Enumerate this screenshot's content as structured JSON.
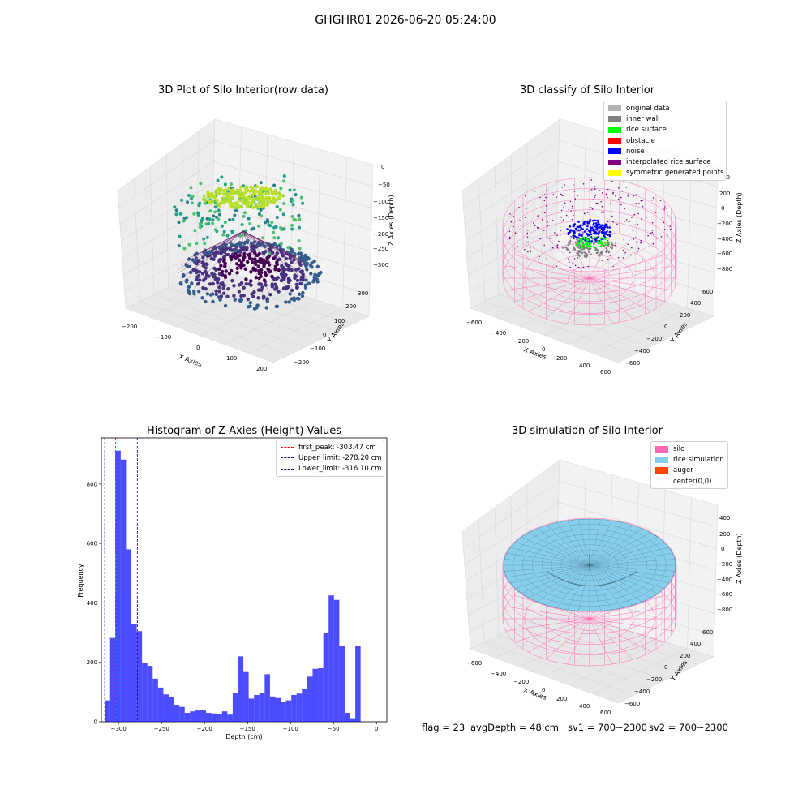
{
  "suptitle": "GHGHR01 2026-06-20 05:24:00",
  "panels": {
    "raw": {
      "title": "3D Plot of Silo Interior(row data)",
      "xlabel": "X Axies",
      "ylabel": "Y Axies",
      "zlabel": "Z Axies (Depth)",
      "xticks": [
        "−200",
        "−100",
        "0",
        "100",
        "200"
      ],
      "yticks": [
        "−200",
        "−100",
        "0",
        "100",
        "200",
        "300"
      ],
      "zticks": [
        "0",
        "−50",
        "−100",
        "−150",
        "−200",
        "−250",
        "−300"
      ]
    },
    "classify": {
      "title": "3D classify of Silo Interior",
      "xlabel": "X Axies",
      "ylabel": "Y Axies",
      "zlabel": "Z Axies (Depth)",
      "xticks": [
        "−600",
        "−400",
        "−200",
        "0",
        "200",
        "400",
        "600"
      ],
      "yticks": [
        "−600",
        "−400",
        "−200",
        "0",
        "200",
        "400",
        "600"
      ],
      "zticks": [
        "200",
        "0",
        "−200",
        "−400",
        "−600",
        "−800"
      ],
      "legend": [
        {
          "label": "original data",
          "color": "#b4b4b4"
        },
        {
          "label": "inner wall",
          "color": "#808080"
        },
        {
          "label": "rice surface",
          "color": "#00ff00"
        },
        {
          "label": "obstacle",
          "color": "#ff0000"
        },
        {
          "label": "noise",
          "color": "#0000ff"
        },
        {
          "label": "interpolated rice surface",
          "color": "#800080"
        },
        {
          "label": "symmetric generated points",
          "color": "#ffff00"
        }
      ],
      "partial_ztick": "00"
    },
    "simulation": {
      "title": "3D simulation of Silo Interior",
      "xlabel": "X Axies",
      "ylabel": "Y Axies",
      "zlabel": "Z Axies (Depth)",
      "xticks": [
        "−600",
        "−400",
        "−200",
        "0",
        "200",
        "400",
        "600"
      ],
      "yticks": [
        "−600",
        "−400",
        "−200",
        "0",
        "200",
        "400",
        "600"
      ],
      "zticks": [
        "400",
        "200",
        "0",
        "−200",
        "−400",
        "−600",
        "−800"
      ],
      "legend": [
        {
          "label": "silo",
          "color": "#ff69b4"
        },
        {
          "label": "rice simulation",
          "color": "#87ceeb"
        },
        {
          "label": "auger",
          "color": "#ff4500"
        },
        {
          "label": "center(0,0)",
          "color": ""
        }
      ]
    }
  },
  "chart_data": {
    "type": "bar",
    "title": "Histogram of Z-Axies (Height) Values",
    "xlabel": "Depth (cm)",
    "ylabel": "Frequency",
    "xlim": [
      -320,
      12
    ],
    "ylim": [
      0,
      955
    ],
    "bin_width": 6.2,
    "bin_start": -316.1,
    "xticks": [
      -300,
      -250,
      -200,
      -150,
      -100,
      -50,
      0
    ],
    "xtick_labels": [
      "−300",
      "−250",
      "−200",
      "−150",
      "−100",
      "−50",
      "0"
    ],
    "yticks": [
      0,
      200,
      400,
      600,
      800
    ],
    "values": [
      72,
      282,
      912,
      882,
      580,
      330,
      305,
      198,
      188,
      145,
      115,
      92,
      83,
      57,
      50,
      30,
      35,
      38,
      38,
      30,
      28,
      25,
      35,
      24,
      98,
      220,
      170,
      78,
      90,
      98,
      160,
      85,
      80,
      68,
      72,
      90,
      95,
      112,
      152,
      178,
      180,
      300,
      425,
      410,
      255,
      30,
      12,
      256
    ],
    "bar_color": "#0000ff",
    "vlines": [
      {
        "label": "first_peak: -303.47 cm",
        "x": -303.47,
        "color": "#ff0000"
      },
      {
        "label": "Upper_limit: -278.20 cm",
        "x": -278.2,
        "color": "#00008b"
      },
      {
        "label": "Lower_limit: -316.10 cm",
        "x": -316.1,
        "color": "#00008b"
      }
    ],
    "legend_position": "top-right"
  },
  "footer": {
    "flag": "flag = 23",
    "avg": "avgDepth = 48 cm",
    "sv1": "sv1 = 700~2300",
    "sv2": "sv2 = 700~2300"
  },
  "colors": {
    "grid": "#e3e3e3",
    "pane": "#f3f3f3",
    "pink": "#ff69b4",
    "sky": "#87ceeb"
  }
}
